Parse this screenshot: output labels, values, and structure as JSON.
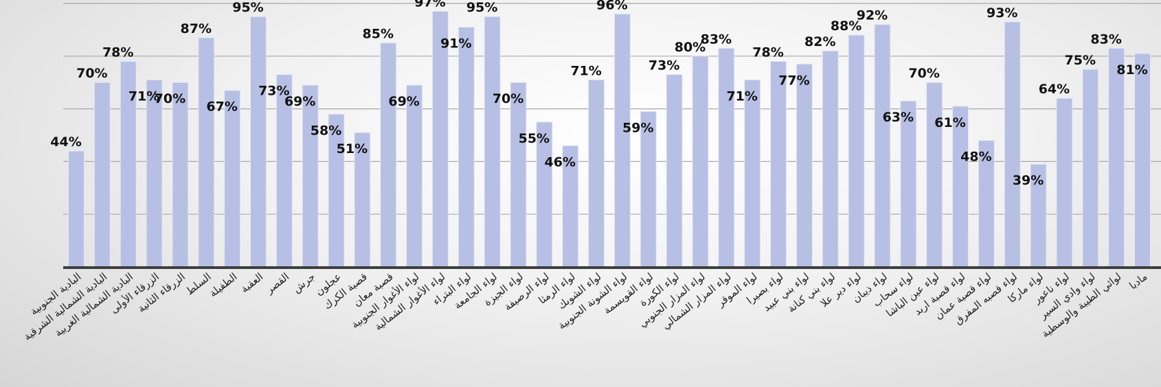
{
  "chart_data": {
    "type": "bar",
    "categories": [
      "البادية الجنوبية",
      "البادية الشمالية الشرقية",
      "البادية الشمالية الغربية",
      "الزرقاء الأولى",
      "الزرقاء الثانية",
      "السلط",
      "الطفيلة",
      "العقبة",
      "القصر",
      "جرش",
      "عجلون",
      "قصبة الكرك",
      "قصبة معان",
      "لواء الأغوار الجنوبية",
      "لواء الأغوار الشمالية",
      "لواء البتراء",
      "لواء الجامعة",
      "لواء الجيزة",
      "لواء الرصيفة",
      "لواء الرمثا",
      "لواء الشوبك",
      "لواء الشونة الجنوبية",
      "لواء القويسمة",
      "لواء الكورة",
      "لواء المزار الجنوبي",
      "لواء المزار الشمالي",
      "لواء الموقر",
      "لواء بصيرا",
      "لواء بني عبيد",
      "لواء بني كنانة",
      "لواء دير علا",
      "لواء ذيبان",
      "لواء سحاب",
      "لواء عين الباشا",
      "لواء قصبة اربد",
      "لواء قصبة عمان",
      "لواء قصبه المفرق",
      "لواء ماركا",
      "لواء ناعور",
      "لواء وادي السير",
      "لوائي الطيبة والوسطية",
      "مادبا"
    ],
    "values": [
      44,
      70,
      78,
      71,
      70,
      87,
      67,
      95,
      73,
      69,
      58,
      51,
      85,
      69,
      97,
      91,
      95,
      70,
      55,
      46,
      71,
      96,
      59,
      73,
      80,
      83,
      71,
      78,
      77,
      82,
      88,
      92,
      63,
      70,
      61,
      48,
      93,
      39,
      64,
      75,
      83,
      81
    ],
    "labels": [
      "44%",
      "70%",
      "78%",
      "71%",
      "70%",
      "87%",
      "67%",
      "95%",
      "73%",
      "69%",
      "58%",
      "51%",
      "85%",
      "69%",
      "97%",
      "91%",
      "95%",
      "70%",
      "55%",
      "46%",
      "71%",
      "96%",
      "59%",
      "73%",
      "80%",
      "83%",
      "71%",
      "78%",
      "77%",
      "82%",
      "88%",
      "92%",
      "63%",
      "70%",
      "61%",
      "48%",
      "93%",
      "39%",
      "64%",
      "75%",
      "83%",
      "81%"
    ],
    "title": "",
    "xlabel": "",
    "ylabel": "",
    "ylim": [
      0,
      100
    ],
    "grid": true,
    "legend": "none",
    "colors": {
      "bar": "#b7c0e4",
      "bar_edge": "#e4e8f6",
      "axis": "#3e3e3e",
      "grid": "#a8a8a8",
      "text": "#111111"
    }
  }
}
